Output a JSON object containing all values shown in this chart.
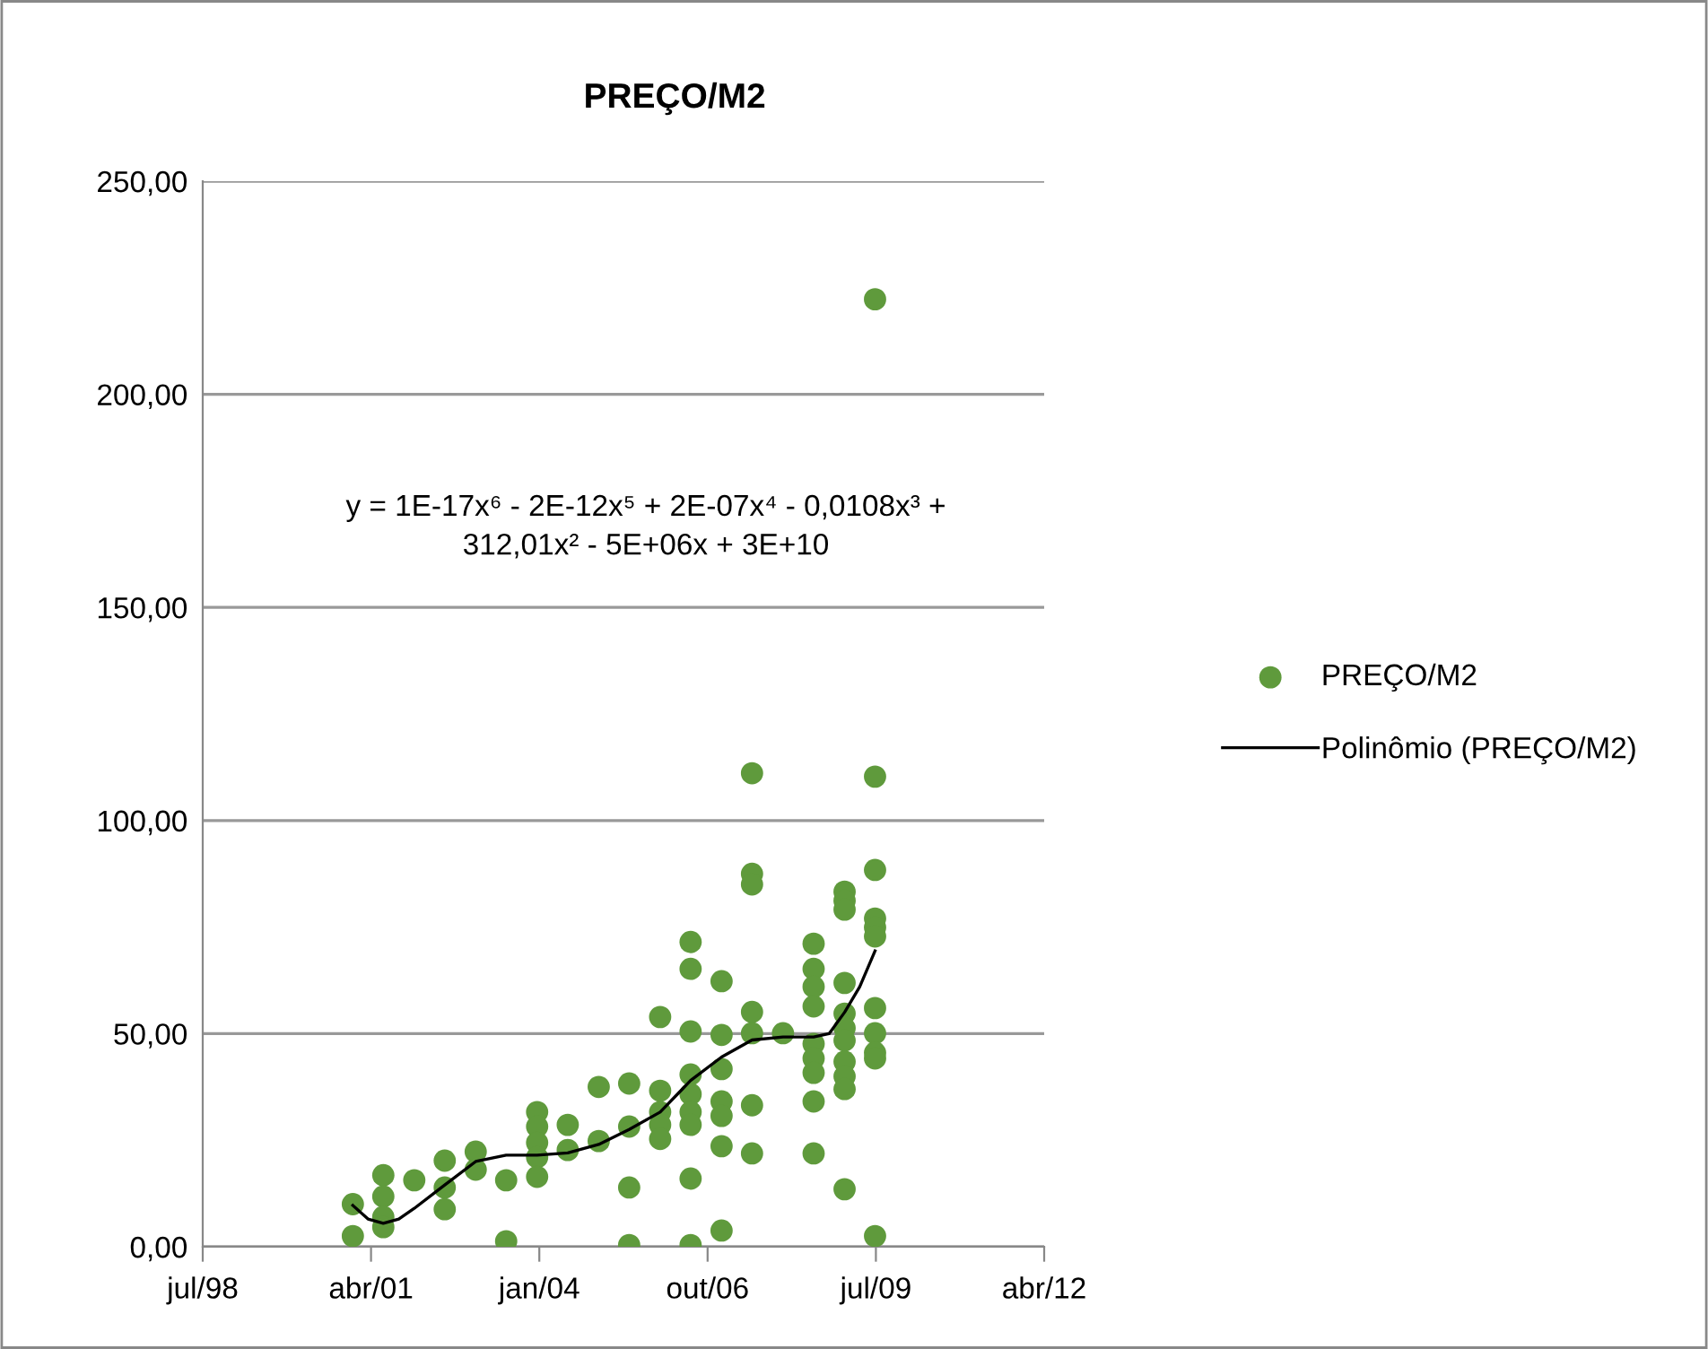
{
  "chart_data": {
    "type": "scatter",
    "title": "PREÇO/M2",
    "series": [
      {
        "name": "PREÇO/M2",
        "color": "#5f9a3c",
        "x": [
          "2001-01-01",
          "2001-01-01",
          "2001-07-01",
          "2001-07-01",
          "2001-07-01",
          "2001-07-01",
          "2002-01-01",
          "2002-07-01",
          "2002-07-01",
          "2002-07-01",
          "2003-01-01",
          "2003-01-01",
          "2003-07-01",
          "2003-07-01",
          "2004-01-01",
          "2004-01-01",
          "2004-01-01",
          "2004-01-01",
          "2004-01-01",
          "2004-07-01",
          "2004-07-01",
          "2005-01-01",
          "2005-01-01",
          "2005-07-01",
          "2005-07-01",
          "2005-07-01",
          "2005-07-01",
          "2006-01-01",
          "2006-01-01",
          "2006-01-01",
          "2006-01-01",
          "2006-01-01",
          "2006-07-01",
          "2006-07-01",
          "2006-07-01",
          "2006-07-01",
          "2006-07-01",
          "2006-07-01",
          "2006-07-01",
          "2006-07-01",
          "2006-07-01",
          "2007-01-01",
          "2007-01-01",
          "2007-01-01",
          "2007-01-01",
          "2007-01-01",
          "2007-01-01",
          "2007-01-01",
          "2007-07-01",
          "2007-07-01",
          "2007-07-01",
          "2007-07-01",
          "2007-07-01",
          "2007-07-01",
          "2007-07-01",
          "2008-01-01",
          "2008-07-01",
          "2008-07-01",
          "2008-07-01",
          "2008-07-01",
          "2008-07-01",
          "2008-07-01",
          "2008-07-01",
          "2008-07-01",
          "2008-07-01",
          "2009-01-01",
          "2009-01-01",
          "2009-01-01",
          "2009-01-01",
          "2009-01-01",
          "2009-01-01",
          "2009-01-01",
          "2009-01-01",
          "2009-01-01",
          "2009-01-01",
          "2009-01-01",
          "2009-07-01",
          "2009-07-01",
          "2009-07-01",
          "2009-07-01",
          "2009-07-01",
          "2009-07-01",
          "2009-07-01",
          "2009-07-01",
          "2009-07-01",
          "2009-07-01",
          "2009-07-01"
        ],
        "values": [
          10,
          2.5,
          16.8,
          11.8,
          7,
          4.6,
          15.6,
          20.2,
          13.9,
          8.8,
          22.3,
          18.1,
          15.6,
          1.3,
          31.6,
          28.2,
          24.4,
          21,
          16.4,
          28.6,
          22.7,
          37.5,
          24.8,
          38.3,
          28.2,
          13.9,
          0.4,
          53.9,
          36.6,
          31.6,
          28.6,
          25.3,
          71.5,
          65.2,
          50.5,
          40.4,
          35.8,
          31.6,
          28.6,
          16,
          0.4,
          62.3,
          49.7,
          41.7,
          34.1,
          30.7,
          23.6,
          3.8,
          111.1,
          87.5,
          85,
          55.1,
          50.1,
          33.2,
          21.9,
          50.1,
          71.1,
          65.2,
          61,
          56.4,
          47.6,
          44.2,
          40.8,
          34.1,
          21.9,
          83.3,
          81.2,
          79.1,
          61.9,
          54.7,
          51.3,
          48.4,
          43.4,
          40,
          37,
          13.5,
          222.3,
          110.3,
          88.4,
          77,
          74.9,
          72.8,
          56,
          50.1,
          45.5,
          44.2,
          2.5
        ]
      },
      {
        "name": "Polinômio (PREÇO/M2)",
        "type": "line",
        "color": "#000000",
        "marker": "none",
        "x": [
          "2001-01-01",
          "2001-04-01",
          "2001-07-01",
          "2001-10-01",
          "2002-01-01",
          "2002-07-01",
          "2003-01-01",
          "2003-07-01",
          "2004-01-01",
          "2004-07-01",
          "2005-01-01",
          "2005-07-01",
          "2006-01-01",
          "2006-07-01",
          "2007-01-01",
          "2007-07-01",
          "2008-01-01",
          "2008-07-01",
          "2008-10-01",
          "2009-01-01",
          "2009-04-01",
          "2009-07-01"
        ],
        "values": [
          9.7,
          6.5,
          5.5,
          6.5,
          9,
          14.5,
          20,
          21.5,
          21.5,
          22,
          24,
          27.5,
          31.6,
          39,
          44.5,
          48.5,
          49.2,
          49.2,
          50,
          55,
          61,
          69.4
        ]
      }
    ],
    "marker": "circle",
    "xlim": [
      "1998-07-24",
      "2012-04-01"
    ],
    "xticks": [
      {
        "value": "1998-07-24",
        "label": "jul/98"
      },
      {
        "value": "2001-04-19",
        "label": "abr/01"
      },
      {
        "value": "2004-01-14",
        "label": "jan/04"
      },
      {
        "value": "2006-10-10",
        "label": "out/06"
      },
      {
        "value": "2009-07-06",
        "label": "jul/09"
      },
      {
        "value": "2012-04-01",
        "label": "abr/12"
      }
    ],
    "ylim": [
      0,
      250
    ],
    "yticks": [
      {
        "value": 0,
        "label": "0,00"
      },
      {
        "value": 50,
        "label": "50,00"
      },
      {
        "value": 100,
        "label": "100,00"
      },
      {
        "value": 150,
        "label": "150,00"
      },
      {
        "value": 200,
        "label": "200,00"
      },
      {
        "value": 250,
        "label": "250,00"
      }
    ],
    "grid": "y",
    "legend": "right",
    "annotations": [
      "y = 1E-17x⁶ - 2E-12x⁵ + 2E-07x⁴ - 0,0108x³ +\n312,01x² - 5E+06x + 3E+10"
    ]
  }
}
